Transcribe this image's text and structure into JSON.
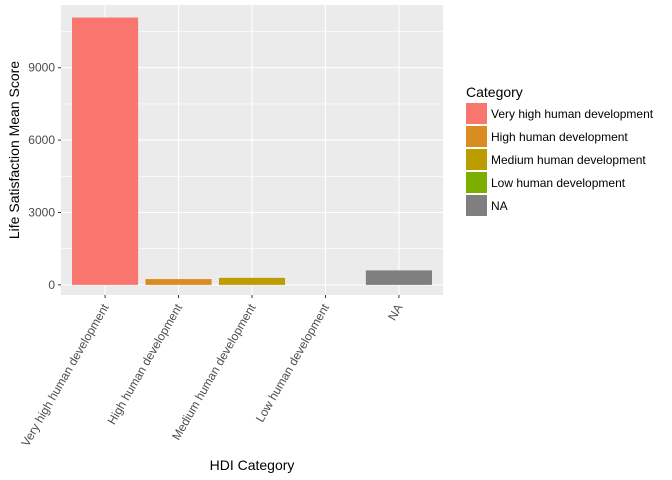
{
  "chart_data": {
    "type": "bar",
    "categories": [
      "Very high human development",
      "High human development",
      "Medium human development",
      "Low human development",
      "NA"
    ],
    "values": [
      11080,
      240,
      290,
      0,
      600
    ],
    "colors": [
      "#F8766D",
      "#D98C20",
      "#BB9D00",
      "#7CAE00",
      "#7F7F7F"
    ],
    "xlabel": "HDI Category",
    "ylabel": "Life Satisfaction Mean Score",
    "ylim": [
      -420,
      11600
    ],
    "yticks": [
      0,
      3000,
      6000,
      9000
    ],
    "ytick_labels": [
      "0",
      "3000",
      "6000",
      "9000"
    ],
    "grid": true,
    "legend": {
      "title": "Category",
      "position": "right",
      "entries": [
        "Very high human development",
        "High human development",
        "Medium human development",
        "Low human development",
        "NA"
      ]
    }
  }
}
